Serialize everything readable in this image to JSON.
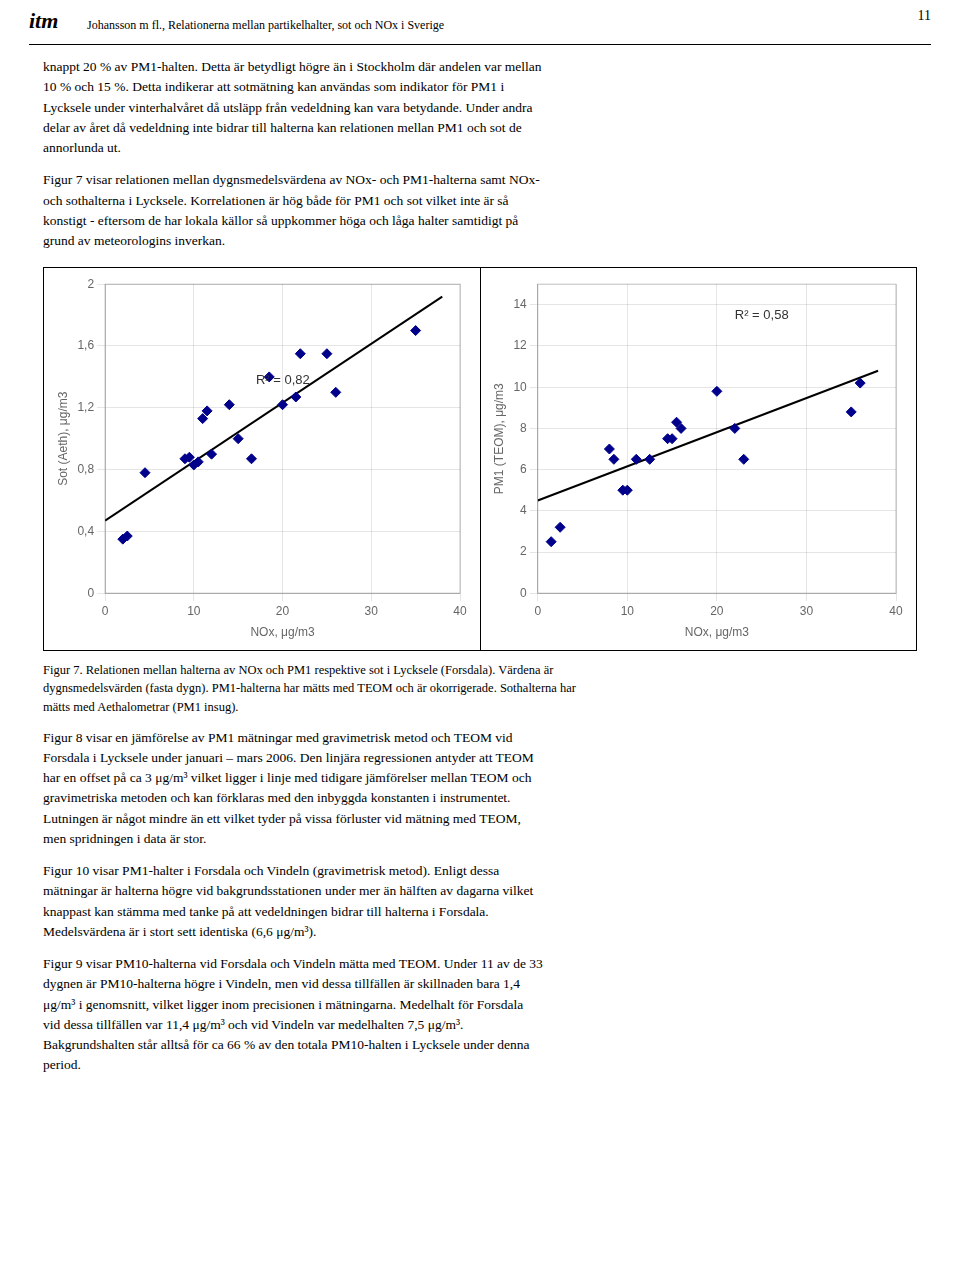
{
  "header_logo": "itm",
  "header_title": "Johansson m fl., Relationerna mellan partikelhalter, sot och NOx i Sverige",
  "page_number": "11",
  "text_before": [
    "knappt 20 % av PM1-halten. Detta är betydligt högre än i Stockholm där andelen var mellan\n10 % och 15 %. Detta indikerar att sotmätning kan användas som indikator för PM1 i\nLycksele under vinterhalvåret då utsläpp från vedeldning kan vara betydande. Under andra\ndelar av året då vedeldning inte bidrar till halterna kan relationen mellan PM1 och sot de\nannorlunda ut.",
    "Figur 7 visar relationen mellan dygnsmedelsvärdena av NOx- och PM1-halterna samt NOx-\noch sothalterna i Lycksele. Korrelationen är hög både för PM1 och sot vilket inte är så\nkonstigt - eftersom de har lokala källor så uppkommer höga och låga halter samtidigt på\ngrund av meteorologins inverkan."
  ],
  "caption": "Figur 7. Relationen mellan halterna av NOx och PM1 respektive sot i Lycksele (Forsdala). Värdena är\ndygnsmedelsvärden (fasta dygn). PM1-halterna har mätts med TEOM och är okorrigerade. Sothalterna har\nmätts med Aethalometrar (PM1 insug).",
  "text_after": [
    "Figur 8 visar en jämförelse av PM1 mätningar med gravimetrisk metod och TEOM vid\nForsdala i Lycksele under januari – mars 2006. Den linjära regressionen antyder att TEOM\nhar en offset på ca 3 μg/m³ vilket ligger i linje med tidigare jämförelser mellan TEOM och\ngravimetriska metoden och kan förklaras med den inbyggda konstanten i instrumentet.\nLutningen är något mindre än ett vilket tyder på vissa förluster vid mätning med TEOM,\nmen spridningen i data är stor.",
    "Figur 10 visar PM1-halter i Forsdala och Vindeln (gravimetrisk metod). Enligt dessa\nmätningar är halterna högre vid bakgrundsstationen under mer än hälften av dagarna vilket\nknappast kan stämma med tanke på att vedeldningen bidrar till halterna i Forsdala.\nMedelsvärdena är i stort sett identiska (6,6 μg/m³).",
    "Figur 9 visar PM10-halterna vid Forsdala och Vindeln mätta med TEOM. Under 11 av de 33\ndygnen är PM10-halterna högre i Vindeln, men vid dessa tillfällen är skillnaden bara 1,4\nμg/m³ i genomsnitt, vilket ligger inom precisionen i mätningarna. Medelhalt för Forsdala\nvid dessa tillfällen var 11,4 μg/m³ och vid Vindeln var medelhalten 7,5 μg/m³.\nBakgrundshalten står alltså för ca 66 % av den totala PM10-halten i Lycksele under denna\nperiod."
  ],
  "chart_data": [
    {
      "type": "scatter",
      "xlabel": "NOx, μg/m3",
      "ylabel": "Sot (Aeth), μg/m3",
      "xlim": [
        0,
        40
      ],
      "ylim": [
        0,
        2.0
      ],
      "xticks": [
        0,
        10,
        20,
        30,
        40
      ],
      "yticks": [
        0,
        {
          "value": 0.4,
          "label": "0,4"
        },
        {
          "value": 0.8,
          "label": "0,8"
        },
        {
          "value": 1.2,
          "label": "1,2"
        },
        {
          "value": 1.6,
          "label": "1,6"
        },
        2
      ],
      "grid": true,
      "series": [
        {
          "type": "line",
          "color": "#000000",
          "x": [
            0,
            38
          ],
          "values": [
            0.47,
            1.92
          ]
        },
        {
          "type": "scatter",
          "marker": "diamond",
          "color": "#00008B",
          "x": [
            2.0,
            2.5,
            4.5,
            9.0,
            9.5,
            10.0,
            10.5,
            11.0,
            11.5,
            12.0,
            14.0,
            15.0,
            16.5,
            18.5,
            20.0,
            21.5,
            22.0,
            25.0,
            26.0,
            35.0
          ],
          "values": [
            0.35,
            0.37,
            0.78,
            0.87,
            0.88,
            0.83,
            0.85,
            1.13,
            1.18,
            0.9,
            1.22,
            1.0,
            0.87,
            1.4,
            1.22,
            1.27,
            1.55,
            1.55,
            1.3,
            1.7
          ]
        }
      ],
      "annotations": [
        {
          "text": "R² = 0,82",
          "x": 17.0,
          "y": 1.38
        }
      ]
    },
    {
      "type": "scatter",
      "xlabel": "NOx, μg/m3",
      "ylabel": "PM1 (TEOM), μg/m3",
      "xlim": [
        0,
        40
      ],
      "ylim": [
        0,
        15
      ],
      "xticks": [
        0,
        10,
        20,
        30,
        40
      ],
      "yticks": [
        0,
        2,
        4,
        6,
        8,
        10,
        12,
        14
      ],
      "grid": true,
      "series": [
        {
          "type": "line",
          "color": "#000000",
          "x": [
            0,
            38
          ],
          "values": [
            4.5,
            10.8
          ]
        },
        {
          "type": "scatter",
          "marker": "diamond",
          "color": "#00008B",
          "x": [
            1.5,
            2.5,
            8.0,
            8.5,
            9.5,
            10.0,
            11.0,
            12.5,
            14.5,
            15.0,
            15.5,
            16.0,
            20.0,
            22.0,
            23.0,
            35.0,
            36.0
          ],
          "values": [
            2.5,
            3.2,
            7.0,
            6.5,
            5.0,
            5.0,
            6.5,
            6.5,
            7.5,
            7.5,
            8.3,
            8.0,
            9.8,
            8.0,
            6.5,
            8.8,
            10.2
          ]
        }
      ],
      "annotations": [
        {
          "text": "R² = 0,58",
          "x": 22.0,
          "y": 13.5
        }
      ]
    }
  ]
}
